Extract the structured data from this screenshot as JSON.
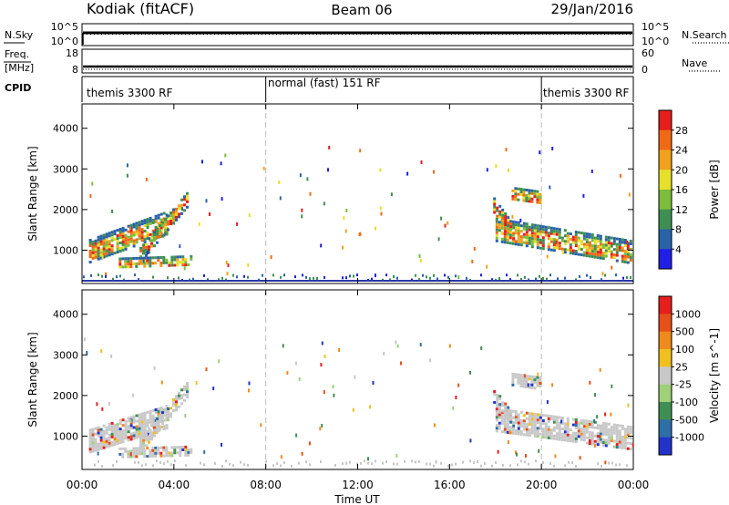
{
  "header": {
    "station": "Kodiak (fitACF)",
    "beam": "Beam 06",
    "date": "29/Jan/2016"
  },
  "noise_panel": {
    "left_label": "N.Sky",
    "right_label": "N.Search",
    "left_ticks": [
      "10^5",
      "10^0"
    ],
    "right_ticks": [
      "10^5",
      "10^0"
    ]
  },
  "freq_panel": {
    "left_label_1": "Freq.",
    "left_label_2": "[MHz]",
    "right_label": "Nave",
    "left_ticks": [
      "18",
      "8"
    ],
    "right_ticks": [
      "60",
      "0"
    ]
  },
  "cpid_panel": {
    "label": "CPID",
    "segments": [
      {
        "name": "themis 3300 RF",
        "start_hour": 0,
        "end_hour": 8
      },
      {
        "name": "normal (fast) 151 RF",
        "start_hour": 8,
        "end_hour": 20
      },
      {
        "name": "themis 3300 RF",
        "start_hour": 20,
        "end_hour": 24
      }
    ]
  },
  "x_axis": {
    "label": "Time UT",
    "ticks": [
      "00:00",
      "04:00",
      "08:00",
      "12:00",
      "16:00",
      "20:00",
      "00:00"
    ],
    "tick_hours": [
      0,
      4,
      8,
      12,
      16,
      20,
      24
    ],
    "range_hours": [
      0,
      24
    ]
  },
  "chart_data": [
    {
      "type": "heatmap",
      "quantity": "Power",
      "xlabel": "Time UT",
      "ylabel": "Slant Range [km]",
      "ylim": [
        180,
        4600
      ],
      "yticks": [
        1000,
        2000,
        3000,
        4000
      ],
      "colorbar": {
        "label": "Power [dB]",
        "ticks": [
          "4",
          "8",
          "12",
          "16",
          "20",
          "24",
          "28"
        ],
        "colors": [
          "#1f1fe6",
          "#2a62a8",
          "#3f8f52",
          "#7cbd3a",
          "#e6e02a",
          "#f0a21d",
          "#f06a16",
          "#e61e1e"
        ]
      },
      "echo_regions": [
        {
          "start_hour": 0.3,
          "end_hour": 3.7,
          "start_range_km": 1000,
          "end_range_km": 1700,
          "width_km": 280
        },
        {
          "start_hour": 2.5,
          "end_hour": 4.6,
          "start_range_km": 900,
          "end_range_km": 2300,
          "width_km": 180
        },
        {
          "start_hour": 1.6,
          "end_hour": 4.8,
          "start_range_km": 700,
          "end_range_km": 760,
          "width_km": 120
        },
        {
          "start_hour": 18.0,
          "end_hour": 23.9,
          "start_range_km": 1500,
          "end_range_km": 950,
          "width_km": 300
        },
        {
          "start_hour": 17.9,
          "end_hour": 18.8,
          "start_range_km": 2100,
          "end_range_km": 1400,
          "width_km": 200
        },
        {
          "start_hour": 18.7,
          "end_hour": 20.0,
          "start_range_km": 2400,
          "end_range_km": 2300,
          "width_km": 160
        }
      ]
    },
    {
      "type": "heatmap",
      "quantity": "Velocity",
      "xlabel": "Time UT",
      "ylabel": "Slant Range [km]",
      "ylim": [
        180,
        4600
      ],
      "yticks": [
        1000,
        2000,
        3000,
        4000
      ],
      "colorbar": {
        "label": "Velocity [m s^-1]",
        "ticks": [
          "1000",
          "500",
          "100",
          "25",
          "-25",
          "-100",
          "-500",
          "-1000"
        ],
        "colors": [
          "#2233cc",
          "#2f6fa8",
          "#3f8f52",
          "#9fd07a",
          "#c8c8c8",
          "#f0c020",
          "#f08a1d",
          "#e6501a",
          "#e61e1e"
        ]
      },
      "echo_regions": [
        {
          "start_hour": 0.3,
          "end_hour": 3.7,
          "start_range_km": 900,
          "end_range_km": 1500,
          "width_km": 280
        },
        {
          "start_hour": 2.5,
          "end_hour": 4.6,
          "start_range_km": 800,
          "end_range_km": 2200,
          "width_km": 180
        },
        {
          "start_hour": 1.6,
          "end_hour": 4.8,
          "start_range_km": 600,
          "end_range_km": 650,
          "width_km": 120
        },
        {
          "start_hour": 18.0,
          "end_hour": 23.9,
          "start_range_km": 1400,
          "end_range_km": 950,
          "width_km": 300
        },
        {
          "start_hour": 17.9,
          "end_hour": 18.8,
          "start_range_km": 2000,
          "end_range_km": 1300,
          "width_km": 200
        },
        {
          "start_hour": 18.7,
          "end_hour": 20.0,
          "start_range_km": 2400,
          "end_range_km": 2300,
          "width_km": 160
        }
      ]
    }
  ]
}
